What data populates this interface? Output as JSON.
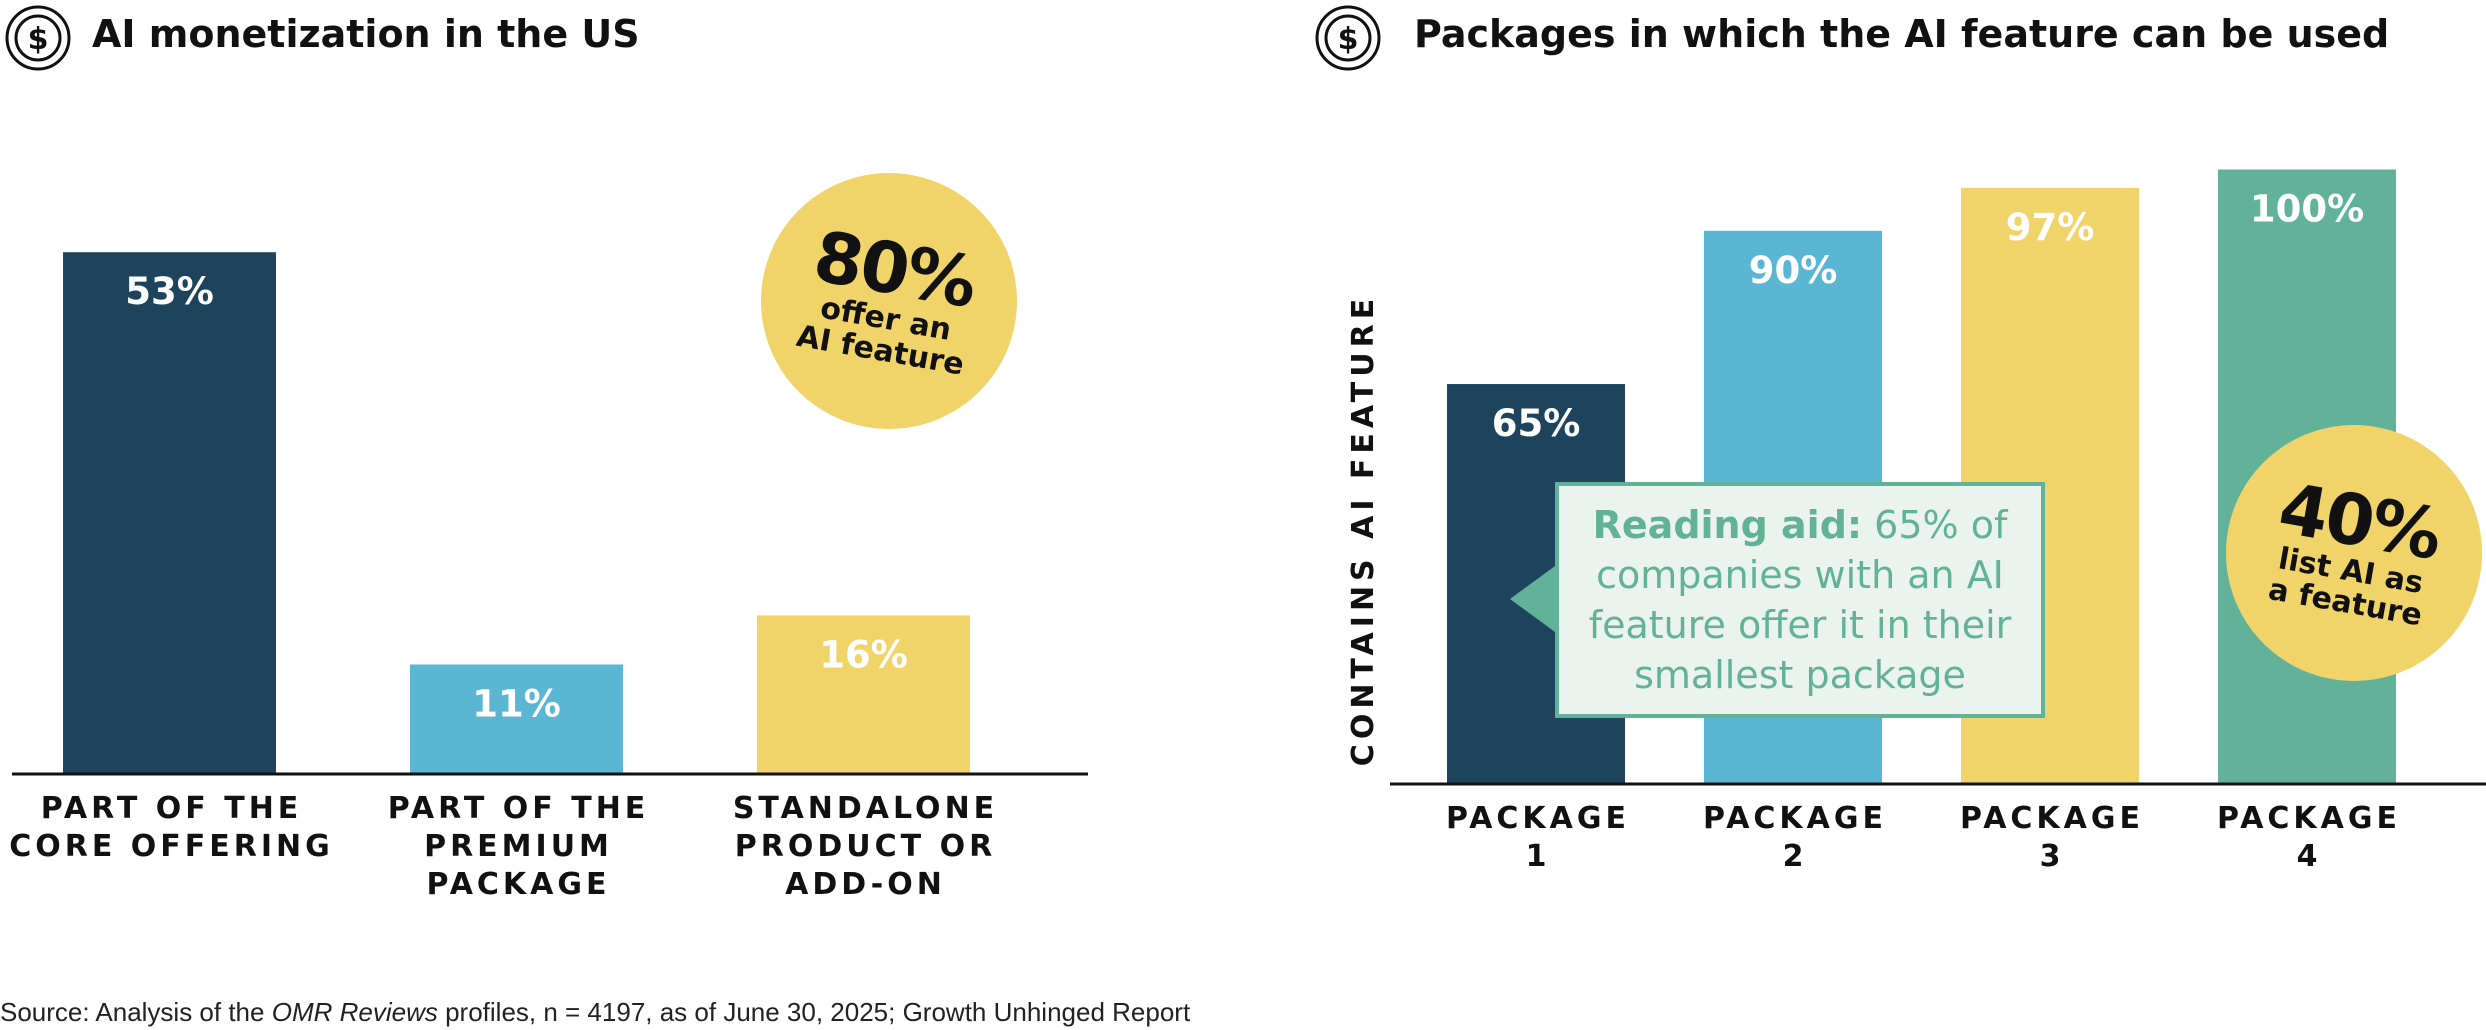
{
  "charts": [
    {
      "title": "AI monetization in the US",
      "icon": "dollar-coin-icon",
      "badge": {
        "value": "80%",
        "text": "offer an AI feature"
      }
    },
    {
      "title": "Packages in which the AI feature can be used",
      "icon": "dollar-coin-icon",
      "badge": {
        "value": "40%",
        "text": "list AI as a feature"
      },
      "callout": {
        "bold": "Reading aid:",
        "text": " 65% of companies with an AI feature offer it in their smallest package"
      }
    }
  ],
  "chart_data": [
    {
      "type": "bar",
      "title": "AI monetization in the US",
      "categories": [
        "PART OF THE CORE OFFERING",
        "PART OF THE PREMIUM PACKAGE",
        "STANDALONE PRODUCT OR ADD-ON"
      ],
      "category_lines": [
        [
          "PART OF THE",
          "CORE OFFERING"
        ],
        [
          "PART OF THE",
          "PREMIUM",
          "PACKAGE"
        ],
        [
          "STANDALONE",
          "PRODUCT OR",
          "ADD-ON"
        ]
      ],
      "values": [
        53,
        11,
        16
      ],
      "value_labels": [
        "53%",
        "11%",
        "16%"
      ],
      "colors": [
        "#1d445c",
        "#5ab6d3",
        "#f0d46a"
      ],
      "ylabel": "",
      "ylim": [
        0,
        60
      ],
      "grid": false
    },
    {
      "type": "bar",
      "title": "Packages in which the AI feature can be used",
      "categories": [
        "PACKAGE 1",
        "PACKAGE 2",
        "PACKAGE 3",
        "PACKAGE 4"
      ],
      "category_lines": [
        [
          "PACKAGE",
          "1"
        ],
        [
          "PACKAGE",
          "2"
        ],
        [
          "PACKAGE",
          "3"
        ],
        [
          "PACKAGE",
          "4"
        ]
      ],
      "values": [
        65,
        90,
        97,
        100
      ],
      "value_labels": [
        "65%",
        "90%",
        "97%",
        "100%"
      ],
      "colors": [
        "#1d445c",
        "#5ab6d3",
        "#f0d46a",
        "#62b29a"
      ],
      "ylabel": "CONTAINS AI FEATURE",
      "ylim": [
        0,
        100
      ],
      "grid": false
    }
  ],
  "source": {
    "prefix": "Source: Analysis of the ",
    "italic": "OMR Reviews",
    "suffix": " profiles, n = 4197, as of June 30, 2025; Growth Unhinged Report"
  }
}
